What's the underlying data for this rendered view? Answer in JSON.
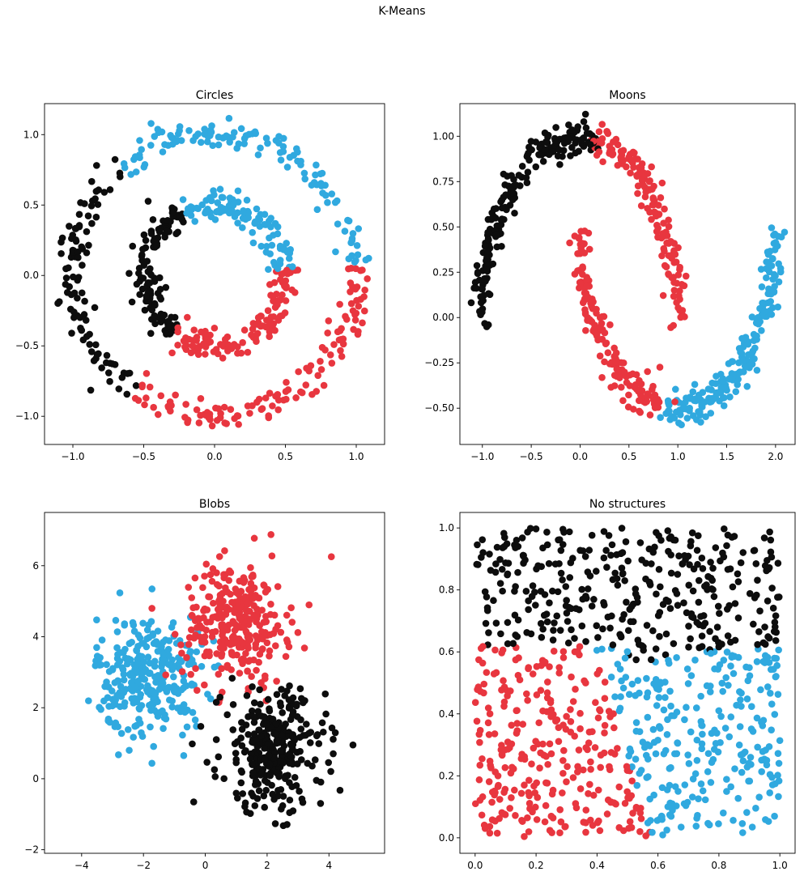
{
  "figure": {
    "suptitle": "K-Means"
  },
  "colors": {
    "cluster_a": "#e8363f",
    "cluster_b": "#30a9df",
    "cluster_c": "#0d0d0d"
  },
  "chart_data": [
    {
      "type": "scatter",
      "title": "Circles",
      "xlabel": "",
      "ylabel": "",
      "xlim": [
        -1.2,
        1.2
      ],
      "ylim": [
        -1.2,
        1.22
      ],
      "xticks": [
        -1.0,
        -0.5,
        0.0,
        0.5,
        1.0
      ],
      "yticks": [
        -1.0,
        -0.5,
        0.0,
        0.5,
        1.0
      ],
      "xtick_labels": [
        "−1.0",
        "−0.5",
        "0.0",
        "0.5",
        "1.0"
      ],
      "ytick_labels": [
        "−1.0",
        "−0.5",
        "0.0",
        "0.5",
        "1.0"
      ],
      "grid": false,
      "legend": "none",
      "clusters": [
        {
          "color": "cluster_c",
          "description": "left halves of outer and inner rings"
        },
        {
          "color": "cluster_b",
          "description": "upper-right arcs of both rings"
        },
        {
          "color": "cluster_a",
          "description": "lower arcs of both rings"
        }
      ]
    },
    {
      "type": "scatter",
      "title": "Moons",
      "xlabel": "",
      "ylabel": "",
      "xlim": [
        -1.23,
        2.2
      ],
      "ylim": [
        -0.7,
        1.18
      ],
      "xticks": [
        -1.0,
        -0.5,
        0.0,
        0.5,
        1.0,
        1.5,
        2.0
      ],
      "yticks": [
        -0.5,
        -0.25,
        0.0,
        0.25,
        0.5,
        0.75,
        1.0
      ],
      "xtick_labels": [
        "−1.0",
        "−0.5",
        "0.0",
        "0.5",
        "1.0",
        "1.5",
        "2.0"
      ],
      "ytick_labels": [
        "−0.50",
        "−0.25",
        "0.00",
        "0.25",
        "0.50",
        "0.75",
        "1.00"
      ],
      "grid": false,
      "legend": "none",
      "clusters": [
        {
          "color": "cluster_c",
          "description": "left part of upper moon"
        },
        {
          "color": "cluster_a",
          "description": "right part of upper moon and left part of lower moon"
        },
        {
          "color": "cluster_b",
          "description": "right part of lower moon"
        }
      ]
    },
    {
      "type": "scatter",
      "title": "Blobs",
      "xlabel": "",
      "ylabel": "",
      "xlim": [
        -5.2,
        5.8
      ],
      "ylim": [
        -2.1,
        7.5
      ],
      "xticks": [
        -4,
        -2,
        0,
        2,
        4
      ],
      "yticks": [
        -2,
        0,
        2,
        4,
        6
      ],
      "xtick_labels": [
        "−4",
        "−2",
        "0",
        "2",
        "4"
      ],
      "ytick_labels": [
        "−2",
        "0",
        "2",
        "4",
        "6"
      ],
      "grid": false,
      "legend": "none",
      "clusters": [
        {
          "color": "cluster_b",
          "center": [
            -1.8,
            2.9
          ],
          "spread": 0.85
        },
        {
          "color": "cluster_a",
          "center": [
            1.0,
            4.4
          ],
          "spread": 0.85
        },
        {
          "color": "cluster_c",
          "center": [
            2.2,
            0.8
          ],
          "spread": 0.85
        }
      ]
    },
    {
      "type": "scatter",
      "title": "No structures",
      "xlabel": "",
      "ylabel": "",
      "xlim": [
        -0.05,
        1.05
      ],
      "ylim": [
        -0.05,
        1.05
      ],
      "xticks": [
        0.0,
        0.2,
        0.4,
        0.6,
        0.8,
        1.0
      ],
      "yticks": [
        0.0,
        0.2,
        0.4,
        0.6,
        0.8,
        1.0
      ],
      "xtick_labels": [
        "0.0",
        "0.2",
        "0.4",
        "0.6",
        "0.8",
        "1.0"
      ],
      "ytick_labels": [
        "0.0",
        "0.2",
        "0.4",
        "0.6",
        "0.8",
        "1.0"
      ],
      "grid": false,
      "legend": "none",
      "clusters": [
        {
          "color": "cluster_c",
          "description": "upper region"
        },
        {
          "color": "cluster_a",
          "description": "lower-left region"
        },
        {
          "color": "cluster_b",
          "description": "lower-right region"
        }
      ]
    }
  ]
}
